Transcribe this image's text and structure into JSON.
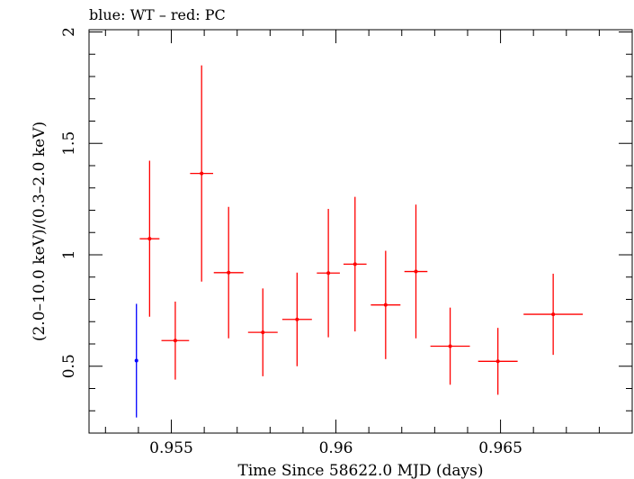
{
  "chart_data": {
    "type": "scatter",
    "title": "blue: WT – red: PC",
    "xlabel": "Time Since 58622.0 MJD (days)",
    "ylabel": "(2.0–10.0 keV)/(0.3–2.0 keV)",
    "xlim": [
      0.9525,
      0.969
    ],
    "ylim": [
      0.2,
      2.01
    ],
    "x_ticks": [
      {
        "value": 0.955,
        "label": "0.955"
      },
      {
        "value": 0.96,
        "label": "0.96"
      },
      {
        "value": 0.965,
        "label": "0.965"
      }
    ],
    "y_ticks": [
      {
        "value": 0.5,
        "label": "0.5"
      },
      {
        "value": 1.0,
        "label": "1"
      },
      {
        "value": 1.5,
        "label": "1.5"
      },
      {
        "value": 2.0,
        "label": "2"
      }
    ],
    "grid": false,
    "series": [
      {
        "name": "WT",
        "color": "#0000ff",
        "points": [
          {
            "x": 0.95394,
            "y": 0.525,
            "xerr": 0.0,
            "yerr_low": 0.255,
            "yerr_high": 0.255
          }
        ]
      },
      {
        "name": "PC",
        "color": "#ff0000",
        "points": [
          {
            "x": 0.95434,
            "y": 1.072,
            "xerr": 0.0003,
            "yerr_low": 0.35,
            "yerr_high": 0.35
          },
          {
            "x": 0.95512,
            "y": 0.615,
            "xerr": 0.00042,
            "yerr_low": 0.175,
            "yerr_high": 0.175
          },
          {
            "x": 0.95592,
            "y": 1.365,
            "xerr": 0.00035,
            "yerr_low": 0.485,
            "yerr_high": 0.485
          },
          {
            "x": 0.95674,
            "y": 0.92,
            "xerr": 0.00045,
            "yerr_low": 0.295,
            "yerr_high": 0.295
          },
          {
            "x": 0.95778,
            "y": 0.652,
            "xerr": 0.00045,
            "yerr_low": 0.197,
            "yerr_high": 0.197
          },
          {
            "x": 0.95882,
            "y": 0.71,
            "xerr": 0.00045,
            "yerr_low": 0.21,
            "yerr_high": 0.21
          },
          {
            "x": 0.95977,
            "y": 0.918,
            "xerr": 0.00035,
            "yerr_low": 0.288,
            "yerr_high": 0.288
          },
          {
            "x": 0.96058,
            "y": 0.958,
            "xerr": 0.00035,
            "yerr_low": 0.302,
            "yerr_high": 0.302
          },
          {
            "x": 0.96151,
            "y": 0.775,
            "xerr": 0.00045,
            "yerr_low": 0.243,
            "yerr_high": 0.243
          },
          {
            "x": 0.96243,
            "y": 0.925,
            "xerr": 0.00035,
            "yerr_low": 0.3,
            "yerr_high": 0.3
          },
          {
            "x": 0.96347,
            "y": 0.59,
            "xerr": 0.0006,
            "yerr_low": 0.173,
            "yerr_high": 0.173
          },
          {
            "x": 0.96492,
            "y": 0.522,
            "xerr": 0.0006,
            "yerr_low": 0.15,
            "yerr_high": 0.15
          },
          {
            "x": 0.9666,
            "y": 0.733,
            "xerr": 0.0009,
            "yerr_low": 0.182,
            "yerr_high": 0.182
          }
        ]
      }
    ]
  }
}
